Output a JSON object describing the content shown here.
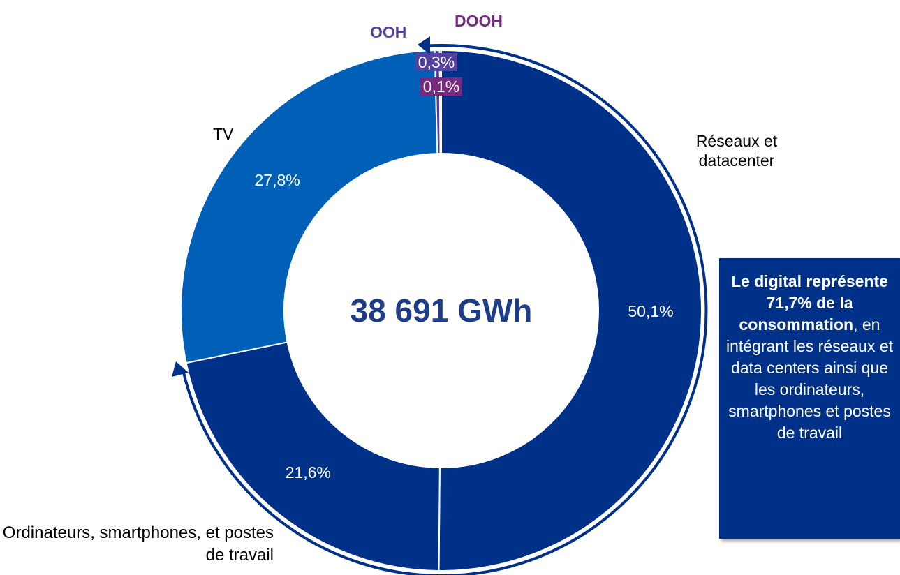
{
  "chart_data": {
    "type": "donut",
    "categories": [
      "Réseaux et datacenter",
      "Ordinateurs, smartphones, et postes de travail",
      "TV",
      "OOH",
      "DOOH"
    ],
    "values": [
      50.1,
      21.6,
      27.8,
      0.3,
      0.1
    ],
    "value_labels": [
      "50,1%",
      "21,6%",
      "27,8%",
      "0,3%",
      "0,1%"
    ],
    "colors": [
      "#003189",
      "#003189",
      "#0060b8",
      "#54409e",
      "#76297e"
    ],
    "center_label": "38 691 GWh",
    "annotation": {
      "bold": "Le digital représente 71,7% de la consommation",
      "text": ", en intégrant les réseaux et data centers ainsi que les ordinateurs, smartphones et postes de travail"
    }
  }
}
